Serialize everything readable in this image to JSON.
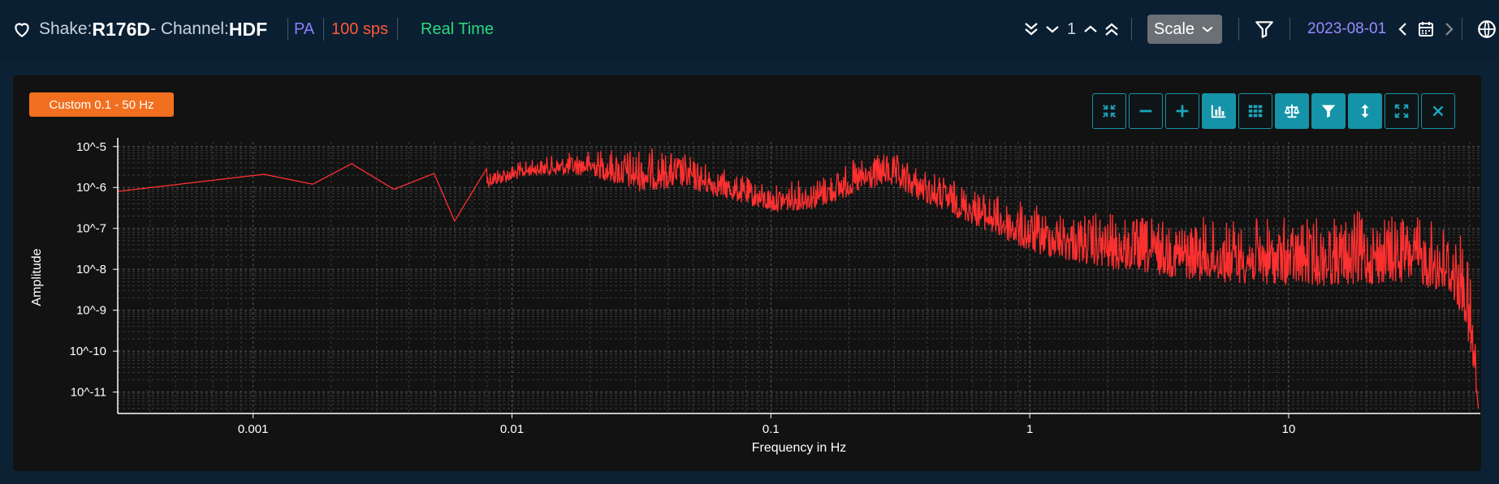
{
  "header": {
    "favorite_icon": "heart-outline-icon",
    "shake_label": "Shake: ",
    "shake_id": "R176D",
    "channel_label": " - Channel: ",
    "channel_id": "HDF",
    "network": "PA",
    "rate": "100 sps",
    "mode": "Real Time",
    "nav_value": "1",
    "scale_label": "Scale",
    "date": "2023-08-01",
    "colors": {
      "network": "#8a7dff",
      "rate": "#ff5a36",
      "mode": "#2bd97b",
      "date": "#9a8cff"
    }
  },
  "panel": {
    "filter_badge": "Custom 0.1 - 50 Hz",
    "filter_badge_color": "#f26f1f",
    "toolbar": [
      {
        "name": "compress-icon",
        "style": "outline"
      },
      {
        "name": "zoom-out-icon",
        "style": "outline"
      },
      {
        "name": "zoom-in-icon",
        "style": "outline"
      },
      {
        "name": "bar-chart-icon",
        "style": "filled"
      },
      {
        "name": "grid-icon",
        "style": "outline"
      },
      {
        "name": "balance-scale-icon",
        "style": "filled"
      },
      {
        "name": "filter-icon",
        "style": "filled"
      },
      {
        "name": "vertical-arrows-icon",
        "style": "filled"
      },
      {
        "name": "expand-icon",
        "style": "outline"
      },
      {
        "name": "close-icon",
        "style": "outline"
      }
    ]
  },
  "chart_data": {
    "type": "line",
    "xlabel": "Frequency in Hz",
    "ylabel": "Amplitude",
    "x_scale": "log",
    "y_scale": "log",
    "xlim": [
      0.0003,
      55
    ],
    "ylim": [
      3e-12,
      1.3e-05
    ],
    "x_ticks": [
      {
        "value": 0.001,
        "label": "0.001"
      },
      {
        "value": 0.01,
        "label": "0.01"
      },
      {
        "value": 0.1,
        "label": "0.1"
      },
      {
        "value": 1,
        "label": "1"
      },
      {
        "value": 10,
        "label": "10"
      }
    ],
    "y_ticks": [
      {
        "value": 1e-05,
        "label": "10^-5"
      },
      {
        "value": 1e-06,
        "label": "10^-6"
      },
      {
        "value": 1e-07,
        "label": "10^-7"
      },
      {
        "value": 1e-08,
        "label": "10^-8"
      },
      {
        "value": 1e-09,
        "label": "10^-9"
      },
      {
        "value": 1e-10,
        "label": "10^-10"
      },
      {
        "value": 1e-11,
        "label": "10^-11"
      }
    ],
    "grid": true,
    "series": [
      {
        "color": "#ff3030",
        "envelope_upper": [
          [
            0.0003,
            8e-07
          ],
          [
            0.0011,
            2.1e-06
          ],
          [
            0.0017,
            1.2e-06
          ],
          [
            0.0024,
            3.8e-06
          ],
          [
            0.0035,
            9e-07
          ],
          [
            0.005,
            2.2e-06
          ],
          [
            0.006,
            1.5e-07
          ],
          [
            0.008,
            3e-06
          ],
          [
            0.012,
            5e-06
          ],
          [
            0.02,
            9e-06
          ],
          [
            0.03,
            1.1e-05
          ],
          [
            0.045,
            8e-06
          ],
          [
            0.07,
            2.5e-06
          ],
          [
            0.1,
            1.2e-06
          ],
          [
            0.15,
            2e-06
          ],
          [
            0.2,
            4.5e-06
          ],
          [
            0.28,
            8e-06
          ],
          [
            0.4,
            3e-06
          ],
          [
            0.7,
            8e-07
          ],
          [
            1,
            4e-07
          ],
          [
            2,
            2.5e-07
          ],
          [
            5,
            2e-07
          ],
          [
            10,
            2e-07
          ],
          [
            20,
            3e-07
          ],
          [
            30,
            2.5e-07
          ],
          [
            42,
            1.8e-07
          ],
          [
            48,
            8e-08
          ],
          [
            52,
            2e-09
          ],
          [
            54,
            4e-12
          ]
        ],
        "envelope_lower": [
          [
            0.0003,
            8e-07
          ],
          [
            0.0011,
            2.1e-06
          ],
          [
            0.0017,
            1.2e-06
          ],
          [
            0.0024,
            3.8e-06
          ],
          [
            0.0035,
            9e-07
          ],
          [
            0.005,
            2.2e-06
          ],
          [
            0.006,
            1.5e-07
          ],
          [
            0.008,
            1e-06
          ],
          [
            0.012,
            2e-06
          ],
          [
            0.02,
            2e-06
          ],
          [
            0.03,
            8e-07
          ],
          [
            0.045,
            1e-06
          ],
          [
            0.07,
            5e-07
          ],
          [
            0.1,
            2.5e-07
          ],
          [
            0.15,
            3e-07
          ],
          [
            0.2,
            6e-07
          ],
          [
            0.28,
            1.2e-06
          ],
          [
            0.4,
            4e-07
          ],
          [
            0.7,
            8e-08
          ],
          [
            1,
            2.5e-08
          ],
          [
            2,
            1e-08
          ],
          [
            5,
            5e-09
          ],
          [
            10,
            4e-09
          ],
          [
            20,
            4e-09
          ],
          [
            30,
            5e-09
          ],
          [
            42,
            2e-09
          ],
          [
            48,
            5e-10
          ],
          [
            52,
            1e-11
          ],
          [
            54,
            4e-12
          ]
        ]
      }
    ]
  }
}
